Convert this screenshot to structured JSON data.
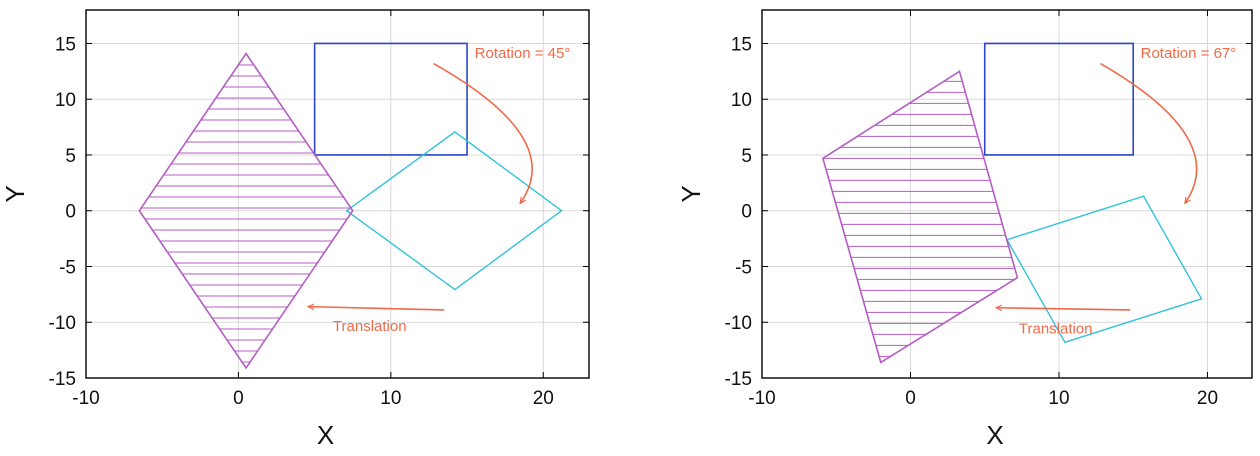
{
  "colors": {
    "original_rect": "#2b46c8",
    "rotated_shape": "#33c2dc",
    "translated_shape": "#b45cc4",
    "annotation": "#f06a48",
    "grid": "#d9d9d9",
    "axes": "#000000"
  },
  "panels": [
    {
      "xlabel": "X",
      "ylabel": "Y",
      "xlim": [
        -10,
        23
      ],
      "ylim": [
        -15,
        18
      ],
      "xticks": [
        -10,
        0,
        10,
        20
      ],
      "yticks": [
        -15,
        -10,
        -5,
        0,
        5,
        10,
        15
      ],
      "rectangle": [
        [
          5,
          5
        ],
        [
          15,
          5
        ],
        [
          15,
          15
        ],
        [
          5,
          15
        ]
      ],
      "rotated": [
        [
          14.2,
          -7.07
        ],
        [
          21.2,
          0
        ],
        [
          14.2,
          7.07
        ],
        [
          7.1,
          0
        ]
      ],
      "translated": [
        [
          0.5,
          -14.1
        ],
        [
          7.5,
          0
        ],
        [
          0.5,
          14.1
        ],
        [
          -6.5,
          0
        ]
      ],
      "rotation_label": "Rotation = 45°",
      "translation_label": "Translation",
      "rotation_label_pos": [
        15.5,
        13.7
      ],
      "rotation_arrow": [
        [
          12.8,
          13.2
        ],
        [
          21.5,
          6.5
        ],
        [
          18.5,
          0.7
        ]
      ],
      "translation_label_pos": [
        6.2,
        -10.8
      ],
      "translation_arrow": [
        [
          13.5,
          -8.9
        ],
        [
          4.6,
          -8.6
        ]
      ]
    },
    {
      "xlabel": "X",
      "ylabel": "Y",
      "xlim": [
        -10,
        23
      ],
      "ylim": [
        -15,
        18
      ],
      "xticks": [
        -10,
        0,
        10,
        20
      ],
      "yticks": [
        -15,
        -10,
        -5,
        0,
        5,
        10,
        15
      ],
      "rectangle": [
        [
          5,
          5
        ],
        [
          15,
          5
        ],
        [
          15,
          15
        ],
        [
          5,
          15
        ]
      ],
      "rotated": [
        [
          10.4,
          -11.8
        ],
        [
          19.6,
          -7.9
        ],
        [
          15.7,
          1.3
        ],
        [
          6.5,
          -2.6
        ]
      ],
      "translated": [
        [
          -2.0,
          -13.6
        ],
        [
          7.2,
          -6.0
        ],
        [
          3.3,
          12.5
        ],
        [
          -5.9,
          4.7
        ]
      ],
      "rotation_label": "Rotation = 67°",
      "translation_label": "Translation",
      "rotation_label_pos": [
        15.5,
        13.7
      ],
      "rotation_arrow": [
        [
          12.8,
          13.2
        ],
        [
          21.5,
          6.5
        ],
        [
          18.5,
          0.7
        ]
      ],
      "translation_label_pos": [
        7.3,
        -11.0
      ],
      "translation_arrow": [
        [
          14.8,
          -8.9
        ],
        [
          5.8,
          -8.7
        ]
      ]
    }
  ]
}
